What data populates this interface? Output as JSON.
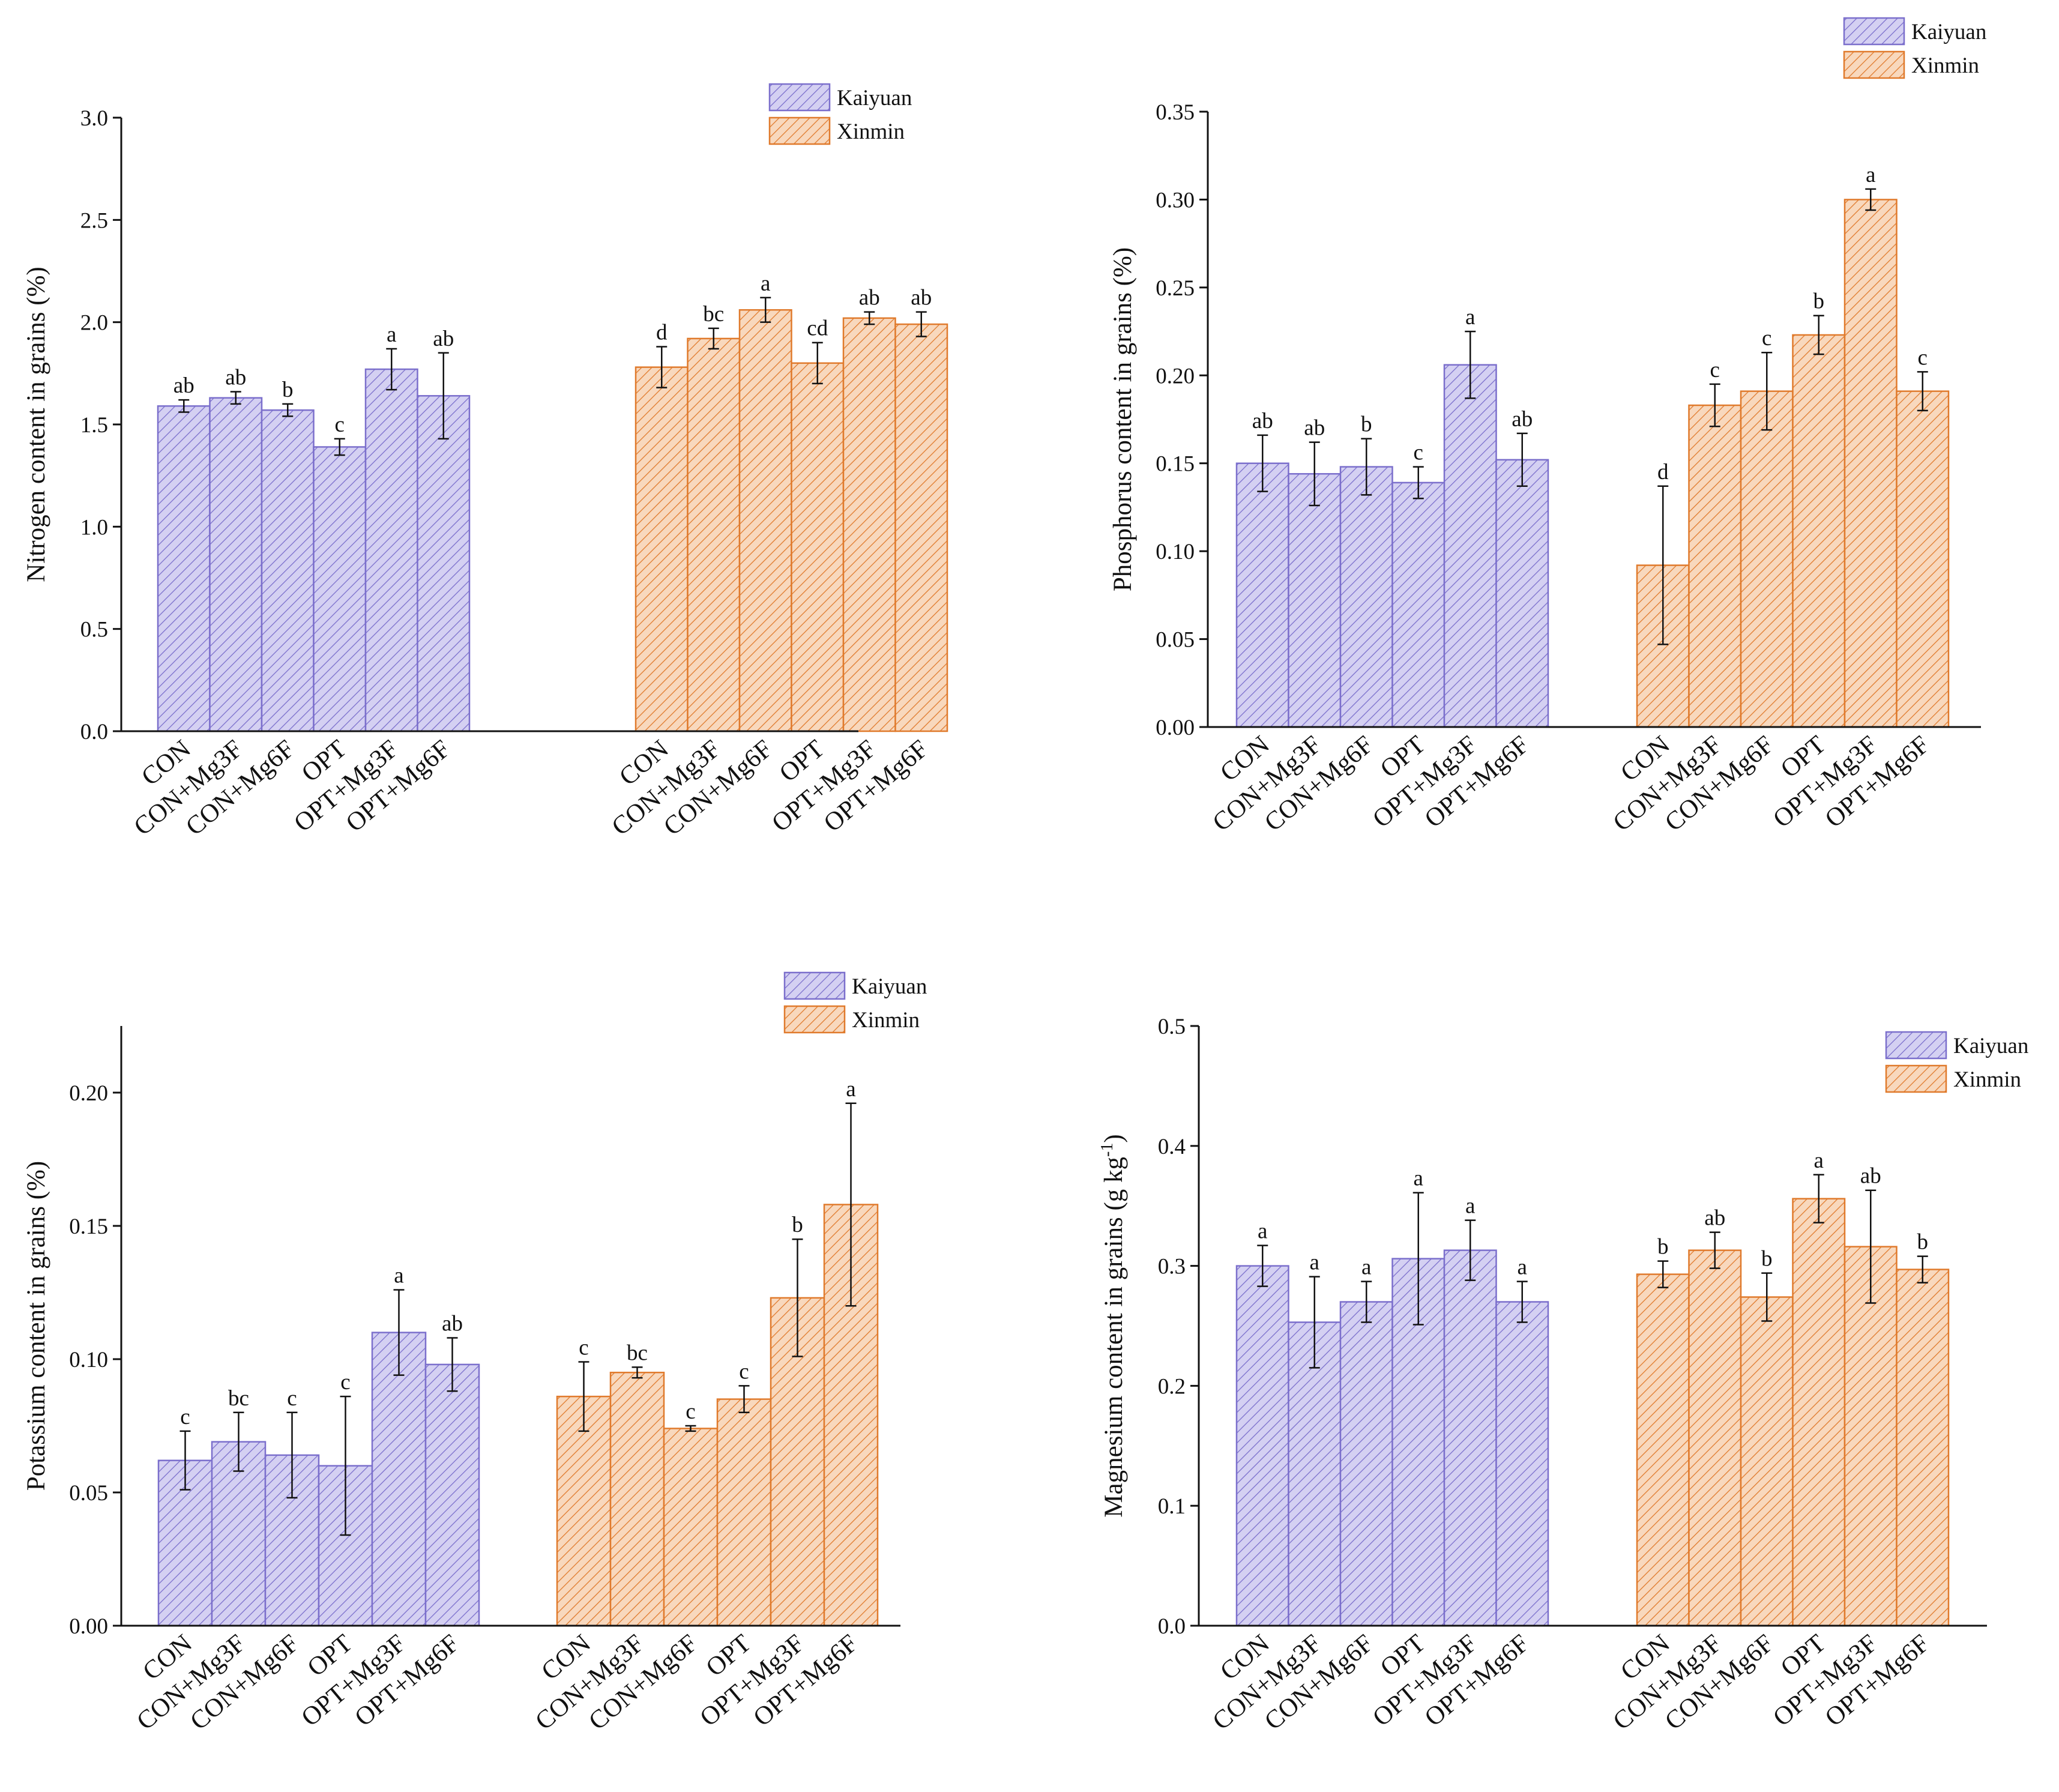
{
  "colors": {
    "kaiyuan_stroke": "#7b6fcc",
    "kaiyuan_fill": "#d4d0f2",
    "xinmin_stroke": "#e07a2c",
    "xinmin_fill": "#f8d8bd",
    "axis": "#111111"
  },
  "chart_data": [
    {
      "type": "bar",
      "ylabel": "Nitrogen content in grains (%)",
      "ylim": [
        0,
        3.0
      ],
      "yticks": [
        "0.0",
        "0.5",
        "1.0",
        "1.5",
        "2.0",
        "2.5",
        "3.0"
      ],
      "categories": [
        "CON",
        "CON+Mg3F",
        "CON+Mg6F",
        "OPT",
        "OPT+Mg3F",
        "OPT+Mg6F"
      ],
      "legend": [
        "Kaiyuan",
        "Xinmin"
      ],
      "legend_position": "top-right",
      "series": [
        {
          "name": "Kaiyuan",
          "values": [
            1.59,
            1.63,
            1.57,
            1.39,
            1.77,
            1.64
          ],
          "errors": [
            0.03,
            0.03,
            0.03,
            0.04,
            0.1,
            0.21
          ],
          "letters": [
            "ab",
            "ab",
            "b",
            "c",
            "a",
            "ab"
          ]
        },
        {
          "name": "Xinmin",
          "values": [
            1.78,
            1.92,
            2.06,
            1.8,
            2.02,
            1.99
          ],
          "errors": [
            0.1,
            0.05,
            0.06,
            0.1,
            0.03,
            0.06
          ],
          "letters": [
            "d",
            "bc",
            "a",
            "cd",
            "ab",
            "ab"
          ]
        }
      ]
    },
    {
      "type": "bar",
      "ylabel": "Phosphorus content in grains (%)",
      "ylim": [
        0,
        0.35
      ],
      "yticks": [
        "0.00",
        "0.05",
        "0.10",
        "0.15",
        "0.20",
        "0.25",
        "0.30",
        "0.35"
      ],
      "categories": [
        "CON",
        "CON+Mg3F",
        "CON+Mg6F",
        "OPT",
        "OPT+Mg3F",
        "OPT+Mg6F"
      ],
      "legend": [
        "Kaiyuan",
        "Xinmin"
      ],
      "legend_position": "top-right",
      "series": [
        {
          "name": "Kaiyuan",
          "values": [
            0.15,
            0.144,
            0.148,
            0.139,
            0.206,
            0.152
          ],
          "errors": [
            0.016,
            0.018,
            0.016,
            0.009,
            0.019,
            0.015
          ],
          "letters": [
            "ab",
            "ab",
            "b",
            "c",
            "a",
            "ab"
          ]
        },
        {
          "name": "Xinmin",
          "values": [
            0.092,
            0.183,
            0.191,
            0.223,
            0.3,
            0.191
          ],
          "errors": [
            0.045,
            0.012,
            0.022,
            0.011,
            0.006,
            0.011
          ],
          "letters": [
            "d",
            "c",
            "c",
            "b",
            "a",
            "c"
          ]
        }
      ]
    },
    {
      "type": "bar",
      "ylabel": "Potassium content in grains (%)",
      "ylim": [
        0,
        0.225
      ],
      "yticks": [
        "0.00",
        "0.05",
        "0.10",
        "0.15",
        "0.20"
      ],
      "ytick_values": [
        0,
        0.05,
        0.1,
        0.15,
        0.2
      ],
      "categories": [
        "CON",
        "CON+Mg3F",
        "CON+Mg6F",
        "OPT",
        "OPT+Mg3F",
        "OPT+Mg6F"
      ],
      "legend": [
        "Kaiyuan",
        "Xinmin"
      ],
      "legend_position": "top-right",
      "series": [
        {
          "name": "Kaiyuan",
          "values": [
            0.062,
            0.069,
            0.064,
            0.06,
            0.11,
            0.098
          ],
          "errors": [
            0.011,
            0.011,
            0.016,
            0.026,
            0.016,
            0.01
          ],
          "letters": [
            "c",
            "bc",
            "c",
            "c",
            "a",
            "ab"
          ]
        },
        {
          "name": "Xinmin",
          "values": [
            0.086,
            0.095,
            0.074,
            0.085,
            0.123,
            0.158
          ],
          "errors": [
            0.013,
            0.002,
            0.001,
            0.005,
            0.022,
            0.038
          ],
          "letters": [
            "c",
            "bc",
            "c",
            "c",
            "b",
            "a"
          ]
        }
      ]
    },
    {
      "type": "bar",
      "ylabel_main": "Magnesium content in grains (g kg",
      "ylabel_sup": "-1",
      "ylabel_end": ")",
      "ylim": [
        0,
        0.5
      ],
      "yticks": [
        "0.0",
        "0.1",
        "0.2",
        "0.3",
        "0.4",
        "0.5"
      ],
      "categories": [
        "CON",
        "CON+Mg3F",
        "CON+Mg6F",
        "OPT",
        "OPT+Mg3F",
        "OPT+Mg6F"
      ],
      "legend": [
        "Kaiyuan",
        "Xinmin"
      ],
      "legend_position": "top-right",
      "series": [
        {
          "name": "Kaiyuan",
          "values": [
            0.3,
            0.253,
            0.27,
            0.306,
            0.313,
            0.27
          ],
          "errors": [
            0.017,
            0.038,
            0.017,
            0.055,
            0.025,
            0.017
          ],
          "letters": [
            "a",
            "a",
            "a",
            "a",
            "a",
            "a"
          ]
        },
        {
          "name": "Xinmin",
          "values": [
            0.293,
            0.313,
            0.274,
            0.356,
            0.316,
            0.297
          ],
          "errors": [
            0.011,
            0.015,
            0.02,
            0.02,
            0.047,
            0.011
          ],
          "letters": [
            "b",
            "ab",
            "b",
            "a",
            "ab",
            "b"
          ]
        }
      ]
    }
  ]
}
